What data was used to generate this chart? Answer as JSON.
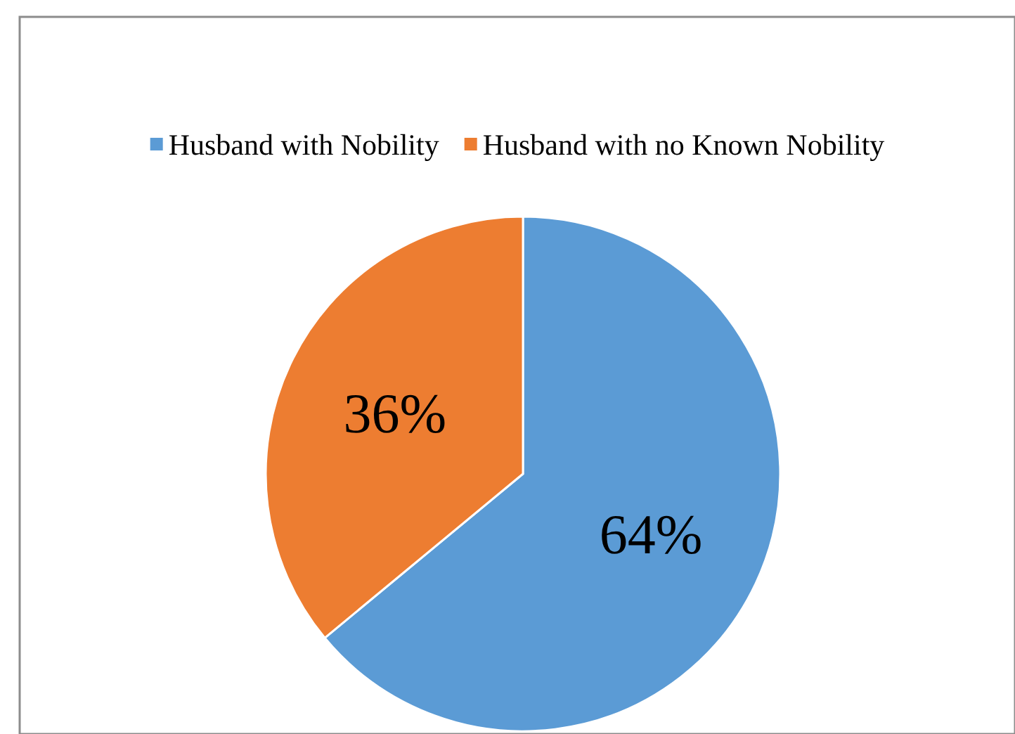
{
  "chart_data": {
    "type": "pie",
    "categories": [
      "Husband with Nobility",
      "Husband with no Known Nobility"
    ],
    "values": [
      64,
      36
    ],
    "colors": [
      "#5b9bd5",
      "#ed7d31"
    ],
    "value_labels": [
      "64%",
      "36%"
    ],
    "legend": "top"
  }
}
